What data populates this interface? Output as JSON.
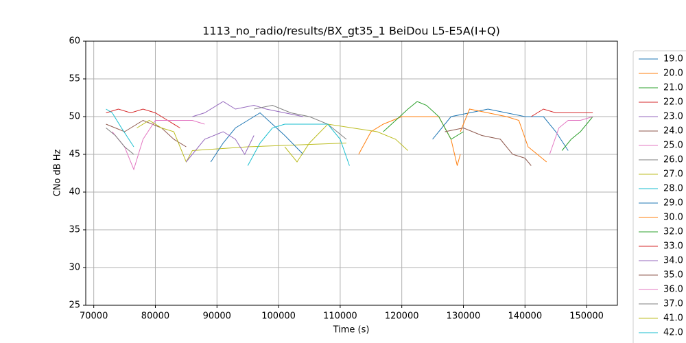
{
  "chart_data": {
    "type": "line",
    "title": "1113_no_radio/results/BX_gt35_1 BeiDou L5-E5A(I+Q)",
    "x_label": "Time (s)",
    "y_label": "CNo dB Hz",
    "xlim": [
      68700,
      155000
    ],
    "ylim": [
      25,
      60
    ],
    "xticks": [
      70000,
      80000,
      90000,
      100000,
      110000,
      120000,
      130000,
      140000,
      150000
    ],
    "yticks": [
      25,
      30,
      35,
      40,
      45,
      50,
      55,
      60
    ],
    "grid": true,
    "legend": "outside-right",
    "series": [
      {
        "name": "19.0",
        "color": "#1f77b4",
        "x": [
          125000,
          128000,
          131000,
          134000,
          137000,
          140000,
          143000,
          145000,
          147000
        ],
        "values": [
          47,
          50,
          50.5,
          51,
          50.5,
          50,
          50,
          48,
          45.5
        ]
      },
      {
        "name": "20.0",
        "color": "#ff7f0e",
        "x": [
          113000,
          115000,
          117000,
          120000,
          123000,
          126000,
          128000,
          129000,
          129500
        ],
        "values": [
          45,
          48,
          49,
          50,
          50,
          50,
          47,
          43.5,
          45
        ]
      },
      {
        "name": "21.0",
        "color": "#2ca02c",
        "x": [
          117000,
          119000,
          121000,
          122500,
          124000,
          126000,
          128000,
          130000
        ],
        "values": [
          48,
          49.5,
          51,
          52,
          51.5,
          50,
          47,
          48
        ]
      },
      {
        "name": "22.0",
        "color": "#d62728",
        "x": [
          72000,
          74000,
          76000,
          78000,
          80000,
          82000,
          84000
        ],
        "values": [
          50.5,
          51,
          50.5,
          51,
          50.5,
          49.5,
          48.5
        ]
      },
      {
        "name": "23.0",
        "color": "#9467bd",
        "x": [
          86000,
          88000,
          91000,
          93000,
          96000,
          98000,
          101000,
          104000
        ],
        "values": [
          50,
          50.5,
          52,
          51,
          51.5,
          51,
          50.5,
          50
        ]
      },
      {
        "name": "24.0",
        "color": "#8c564b",
        "x": [
          72000,
          75000,
          78000,
          81000,
          83000,
          85000
        ],
        "values": [
          49,
          48,
          49.5,
          48.5,
          47,
          46
        ]
      },
      {
        "name": "25.0",
        "color": "#e377c2",
        "x": [
          73000,
          75000,
          76500,
          78000,
          80000,
          83000,
          86000,
          88000
        ],
        "values": [
          48,
          46,
          43,
          47,
          49.5,
          49.5,
          49.5,
          49
        ]
      },
      {
        "name": "26.0",
        "color": "#7f7f7f",
        "x": [
          72000,
          73500,
          75000,
          76500
        ],
        "values": [
          48.5,
          47.5,
          46,
          45
        ]
      },
      {
        "name": "27.0",
        "color": "#bcbd22",
        "x": [
          77000,
          79000,
          81000,
          83000,
          85000,
          86000,
          95000,
          111000
        ],
        "values": [
          48.5,
          49.5,
          48.5,
          48,
          44,
          45.5,
          46,
          46.5
        ]
      },
      {
        "name": "28.0",
        "color": "#17becf",
        "x": [
          72000,
          73000,
          74500,
          76500
        ],
        "values": [
          51,
          50.5,
          48.5,
          46
        ]
      },
      {
        "name": "29.0",
        "color": "#1f77b4",
        "x": [
          89000,
          91000,
          93000,
          95000,
          97000,
          99000,
          101000,
          104000
        ],
        "values": [
          44,
          46.5,
          48.5,
          49.5,
          50.5,
          49,
          47.5,
          45
        ]
      },
      {
        "name": "30.0",
        "color": "#ff7f0e",
        "x": [
          129500,
          131000,
          134000,
          137000,
          139000,
          140500,
          142000,
          143500
        ],
        "values": [
          48,
          51,
          50.5,
          50,
          49.5,
          46,
          45,
          44
        ]
      },
      {
        "name": "32.0",
        "color": "#2ca02c",
        "x": [
          146000,
          147500,
          149000,
          151000
        ],
        "values": [
          45.5,
          47,
          48,
          50
        ]
      },
      {
        "name": "33.0",
        "color": "#d62728",
        "x": [
          141000,
          143000,
          145000,
          147000,
          149000,
          151000
        ],
        "values": [
          50,
          51,
          50.5,
          50.5,
          50.5,
          50.5
        ]
      },
      {
        "name": "34.0",
        "color": "#9467bd",
        "x": [
          85000,
          88000,
          91000,
          93000,
          94500,
          96000
        ],
        "values": [
          44,
          47,
          48,
          47,
          45,
          47.5
        ]
      },
      {
        "name": "35.0",
        "color": "#8c564b",
        "x": [
          127000,
          130000,
          133000,
          136000,
          138000,
          140000,
          141000
        ],
        "values": [
          48,
          48.5,
          47.5,
          47,
          45,
          44.5,
          43.5
        ]
      },
      {
        "name": "36.0",
        "color": "#e377c2",
        "x": [
          144000,
          145500,
          147000,
          149000,
          151000
        ],
        "values": [
          45,
          48.5,
          49.5,
          49.5,
          50
        ]
      },
      {
        "name": "37.0",
        "color": "#7f7f7f",
        "x": [
          96000,
          99000,
          102000,
          105000,
          108000,
          111000
        ],
        "values": [
          51,
          51.5,
          50.5,
          50,
          49,
          47
        ]
      },
      {
        "name": "41.0",
        "color": "#bcbd22",
        "x": [
          101000,
          103000,
          105000,
          108000,
          112000,
          116000,
          119000,
          121000
        ],
        "values": [
          46,
          44,
          46.5,
          49,
          48.5,
          48,
          47,
          45.5
        ]
      },
      {
        "name": "42.0",
        "color": "#17becf",
        "x": [
          95000,
          97000,
          99000,
          101000,
          104000,
          108000,
          110000,
          111500
        ],
        "values": [
          43.5,
          46.5,
          48.5,
          49,
          49,
          49,
          47,
          43.5
        ]
      }
    ]
  }
}
